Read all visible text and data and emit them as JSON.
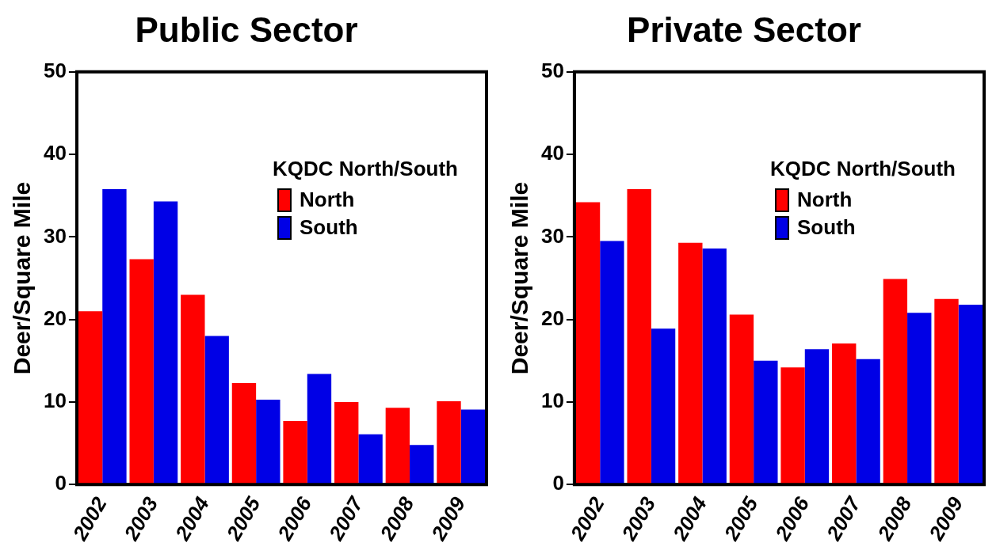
{
  "chart_data": [
    {
      "type": "bar",
      "title": "Public Sector",
      "ylabel": "Deer/Square Mile",
      "legend_title": "KQDC North/South",
      "legend": "top right",
      "categories": [
        "2002",
        "2003",
        "2004",
        "2005",
        "2006",
        "2007",
        "2008",
        "2009"
      ],
      "ylim": [
        0,
        50
      ],
      "yticks": [
        0,
        10,
        20,
        30,
        40,
        50
      ],
      "series": [
        {
          "name": "North",
          "color": "#ff0000",
          "values": [
            21,
            27.3,
            23,
            12.3,
            7.7,
            10,
            9.3,
            10.1
          ]
        },
        {
          "name": "South",
          "color": "#0000e6",
          "values": [
            35.8,
            34.3,
            18,
            10.3,
            13.4,
            6.1,
            4.8,
            9.1
          ]
        }
      ]
    },
    {
      "type": "bar",
      "title": "Private Sector",
      "ylabel": "Deer/Square Mile",
      "legend_title": "KQDC North/South",
      "legend": "top right",
      "categories": [
        "2002",
        "2003",
        "2004",
        "2005",
        "2006",
        "2007",
        "2008",
        "2009"
      ],
      "ylim": [
        0,
        50
      ],
      "yticks": [
        0,
        10,
        20,
        30,
        40,
        50
      ],
      "series": [
        {
          "name": "North",
          "color": "#ff0000",
          "values": [
            34.2,
            35.8,
            29.3,
            20.6,
            14.2,
            17.1,
            24.9,
            22.5
          ]
        },
        {
          "name": "South",
          "color": "#0000e6",
          "values": [
            29.5,
            18.9,
            28.6,
            15,
            16.4,
            15.2,
            20.8,
            21.8
          ]
        }
      ]
    }
  ]
}
